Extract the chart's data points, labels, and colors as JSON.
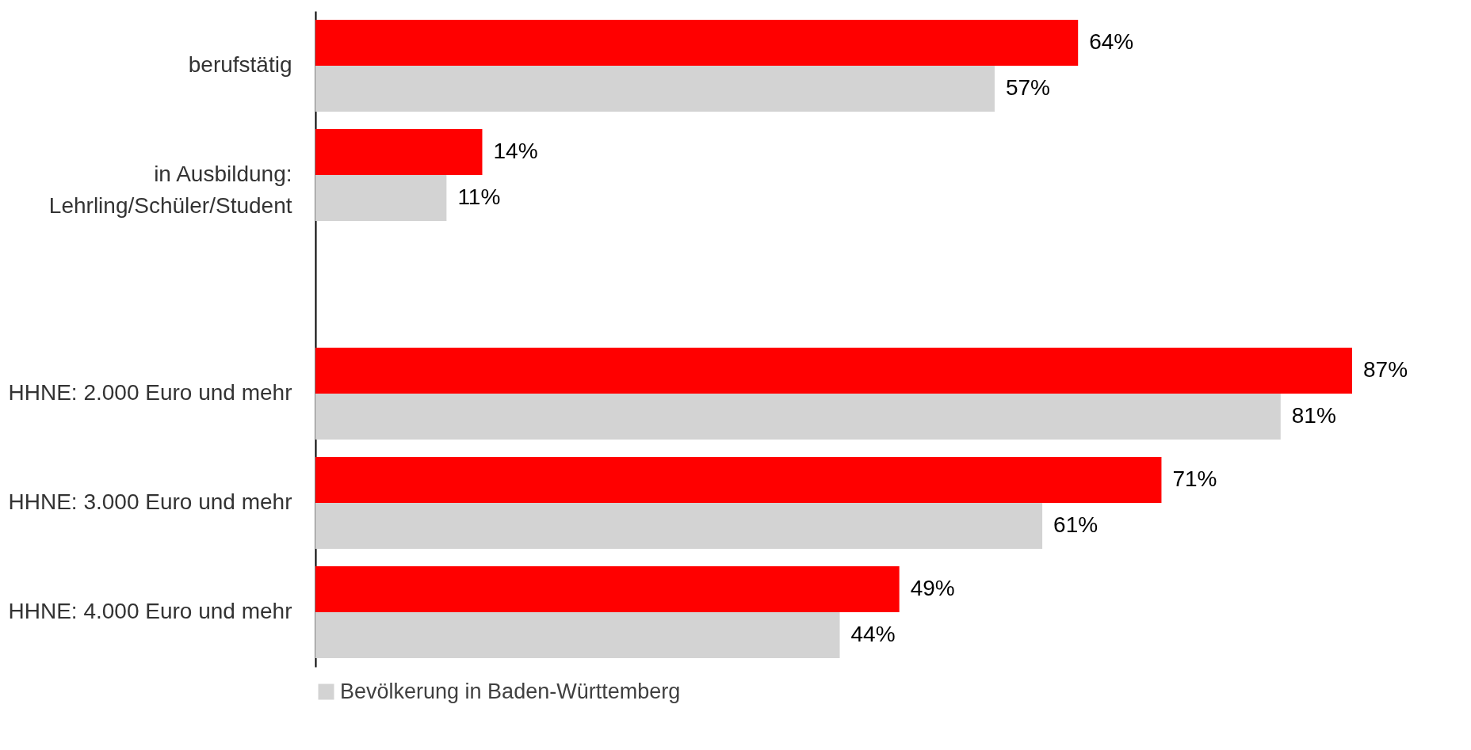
{
  "chart_data": {
    "type": "bar",
    "orientation": "horizontal",
    "legend": "bottom",
    "categories": [
      "berufstätig",
      "in Ausbildung:\nLehrling/Schüler/Student",
      null,
      "HHNE: 2.000 Euro und mehr",
      "HHNE: 3.000 Euro und mehr",
      "HHNE: 4.000 Euro und mehr"
    ],
    "series": [
      {
        "color": "#ff0000",
        "values": [
          64,
          14,
          null,
          87,
          71,
          49
        ],
        "value_labels": [
          "64%",
          "14%",
          null,
          "87%",
          "71%",
          "49%"
        ]
      },
      {
        "name": "Bevölkerung in Baden-Württemberg",
        "color": "#d3d3d3",
        "values": [
          57,
          11,
          null,
          81,
          61,
          44
        ],
        "value_labels": [
          "57%",
          "11%",
          null,
          "81%",
          "61%",
          "44%"
        ]
      }
    ]
  }
}
